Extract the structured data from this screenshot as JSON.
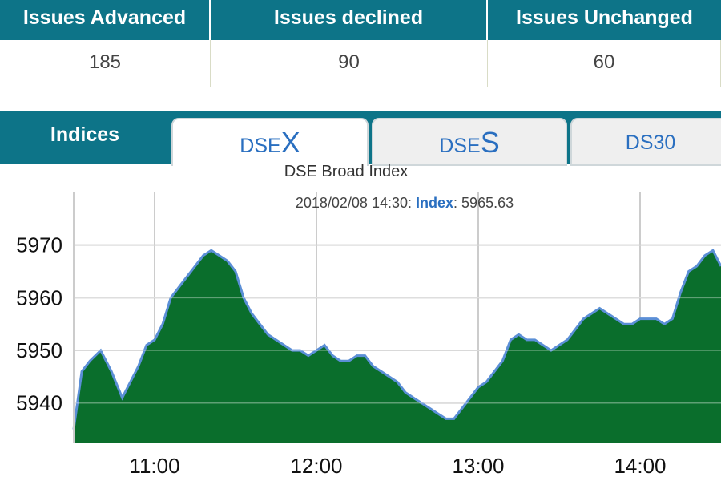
{
  "stats": {
    "headers": [
      "Issues Advanced",
      "Issues declined",
      "Issues Unchanged"
    ],
    "values": [
      "185",
      "90",
      "60"
    ]
  },
  "tabs": {
    "indices_label": "Indices",
    "dsex": {
      "prefix": "DSE",
      "suffix": "X"
    },
    "dses": {
      "prefix": "DSE",
      "suffix": "S"
    },
    "ds30": "DS30"
  },
  "colors": {
    "header_bg": "#0d7488",
    "tab_text": "#2a6fc0",
    "area_fill": "#0a6e2c",
    "line": "#5b8fd6"
  },
  "chart_data": {
    "type": "area",
    "title": "DSE Broad Index",
    "subtitle": {
      "date": "2018/02/08 14:30",
      "sep": ": ",
      "label": "Index",
      "value": "5965.63"
    },
    "x_ticks": [
      "11:00",
      "12:00",
      "13:00",
      "14:00"
    ],
    "y_ticks": [
      5940,
      5950,
      5960,
      5970
    ],
    "xlim": [
      "10:30",
      "14:30"
    ],
    "ylim": [
      5932.5,
      5980
    ],
    "grid": true,
    "series": [
      {
        "x": [
          "10:30",
          "10:33",
          "10:36",
          "10:40",
          "10:44",
          "10:48",
          "10:51",
          "10:54",
          "10:57",
          "11:00",
          "11:03",
          "11:06",
          "11:09",
          "11:12",
          "11:15",
          "11:18",
          "11:21",
          "11:24",
          "11:27",
          "11:30",
          "11:33",
          "11:36",
          "11:39",
          "11:42",
          "11:45",
          "11:48",
          "11:51",
          "11:54",
          "11:57",
          "12:00",
          "12:03",
          "12:06",
          "12:09",
          "12:12",
          "12:15",
          "12:18",
          "12:21",
          "12:24",
          "12:27",
          "12:30",
          "12:33",
          "12:36",
          "12:39",
          "12:42",
          "12:45",
          "12:48",
          "12:51",
          "12:54",
          "12:57",
          "13:00",
          "13:03",
          "13:06",
          "13:09",
          "13:12",
          "13:15",
          "13:18",
          "13:21",
          "13:24",
          "13:27",
          "13:30",
          "13:33",
          "13:36",
          "13:39",
          "13:42",
          "13:45",
          "13:48",
          "13:51",
          "13:54",
          "13:57",
          "14:00",
          "14:03",
          "14:06",
          "14:09",
          "14:12",
          "14:15",
          "14:18",
          "14:21",
          "14:24",
          "14:27",
          "14:30"
        ],
        "values": [
          5935,
          5946,
          5948,
          5950,
          5946,
          5941,
          5944,
          5947,
          5951,
          5952,
          5955,
          5960,
          5962,
          5964,
          5966,
          5968,
          5969,
          5968,
          5967,
          5965,
          5960,
          5957,
          5955,
          5953,
          5952,
          5951,
          5950,
          5950,
          5949,
          5950,
          5951,
          5949,
          5948,
          5948,
          5949,
          5949,
          5947,
          5946,
          5945,
          5944,
          5942,
          5941,
          5940,
          5939,
          5938,
          5937,
          5937,
          5939,
          5941,
          5943,
          5944,
          5946,
          5948,
          5952,
          5953,
          5952,
          5952,
          5951,
          5950,
          5951,
          5952,
          5954,
          5956,
          5957,
          5958,
          5957,
          5956,
          5955,
          5955,
          5956,
          5956,
          5956,
          5955,
          5956,
          5961,
          5965,
          5966,
          5968,
          5969,
          5966
        ]
      }
    ]
  }
}
